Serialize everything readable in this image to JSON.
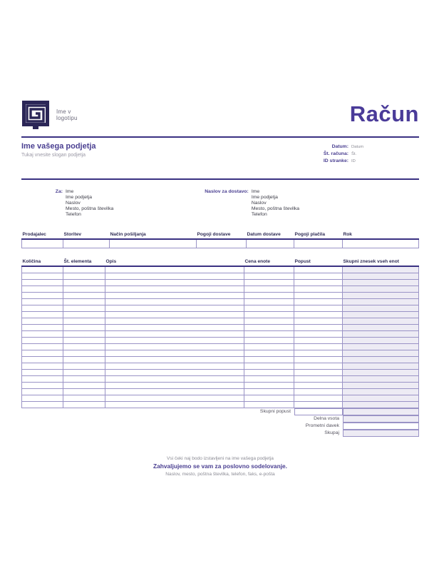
{
  "header": {
    "logo_line1": "Ime v",
    "logo_line2": "logotipu",
    "title": "Račun"
  },
  "company": {
    "name": "Ime vašega podjetja",
    "slogan": "Tukaj vnesite slogan podjetja"
  },
  "meta": {
    "fields": [
      {
        "label": "Datum:",
        "value": "Datum"
      },
      {
        "label": "Št. računa:",
        "value": "Št."
      },
      {
        "label": "ID stranke:",
        "value": "ID"
      }
    ]
  },
  "bill_to": {
    "label": "Za:",
    "lines": [
      "Ime",
      "Ime podjetja",
      "Naslov",
      "Mesto, poštna številka",
      "Telefon"
    ]
  },
  "ship_to": {
    "label": "Naslov za dostavo:",
    "lines": [
      "Ime",
      "Ime podjetja",
      "Naslov",
      "Mesto, poštna številka",
      "Telefon"
    ]
  },
  "shipping_table": {
    "columns": [
      "Prodajalec",
      "Storitev",
      "Način pošiljanja",
      "Pogoji dostave",
      "Datum dostave",
      "Pogoji plačila",
      "Rok"
    ],
    "empty_row_count": 1
  },
  "items_table": {
    "columns": [
      "Količina",
      "Št. elementa",
      "Opis",
      "Cena enote",
      "Popust",
      "Skupni znesek vseh enot"
    ],
    "empty_row_count": 22
  },
  "totals": {
    "discount_label": "Skupni popust",
    "subtotal_label": "Delna vsota",
    "tax_label": "Prometni davek",
    "total_label": "Skupaj"
  },
  "footer": {
    "checks_note": "Vsi čeki naj bodo izstavljeni na ime vašega podjetja",
    "thanks": "Zahvaljujemo se vam za poslovno sodelovanje.",
    "contact": "Naslov, mesto, poštna številka, telefon, faks, e-pošta"
  },
  "colors": {
    "accent": "#4a3f91",
    "title": "#4a3b99",
    "logo_navy": "#2b2657",
    "rule": "#3a3182",
    "cell_border": "#9a93c6",
    "shade": "#edebf4",
    "muted_text": "#8b8b94"
  }
}
